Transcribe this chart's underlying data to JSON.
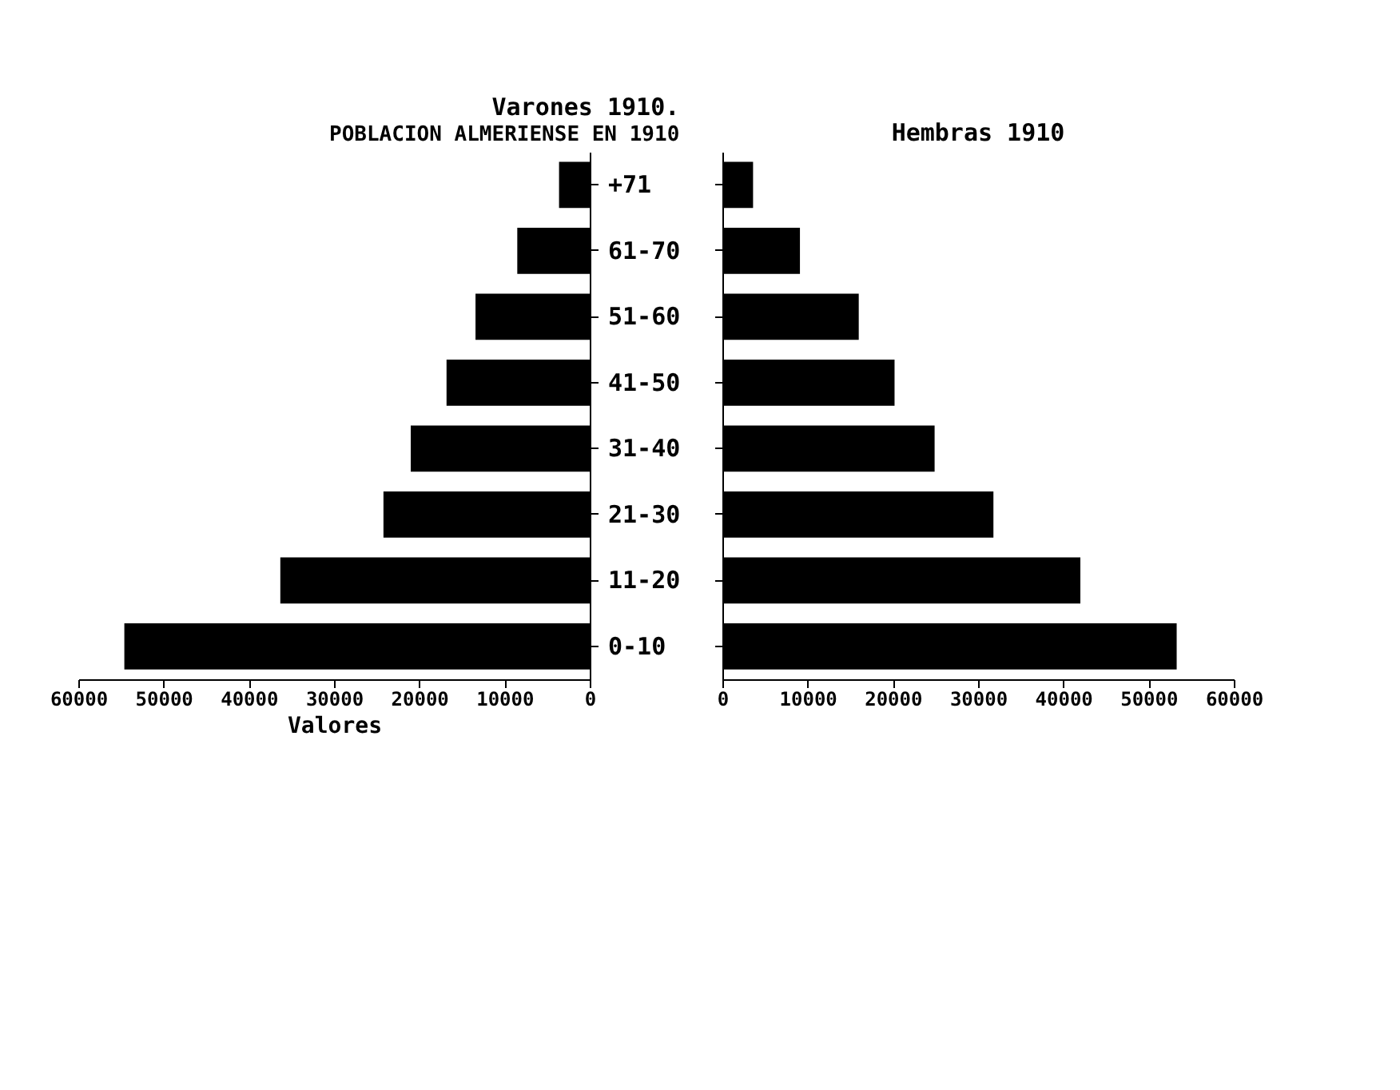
{
  "chart_data": [
    {
      "type": "bar",
      "orientation": "horizontal",
      "title": "Varones 1910.",
      "subtitle": "POBLACION ALMERIENSE EN 1910",
      "xlabel": "Valores",
      "categories": [
        "+71",
        "61-70",
        "51-60",
        "41-50",
        "31-40",
        "21-30",
        "11-20",
        "0-10"
      ],
      "values": [
        3600,
        8500,
        13400,
        16800,
        21000,
        24200,
        36300,
        54600
      ],
      "color": "#000000",
      "xlim": [
        60000,
        0
      ],
      "xticks": [
        60000,
        50000,
        40000,
        30000,
        20000,
        10000,
        0
      ]
    },
    {
      "type": "bar",
      "orientation": "horizontal",
      "title": "Hembras 1910",
      "categories": [
        null,
        null,
        null,
        null,
        null,
        null,
        null,
        null
      ],
      "values": [
        3600,
        9100,
        16000,
        20200,
        24900,
        31800,
        42000,
        53300
      ],
      "color": "#000000",
      "xlim": [
        0,
        60000
      ],
      "xticks": [
        0,
        10000,
        20000,
        30000,
        40000,
        50000,
        60000
      ],
      "tick_labels": "x"
    }
  ]
}
